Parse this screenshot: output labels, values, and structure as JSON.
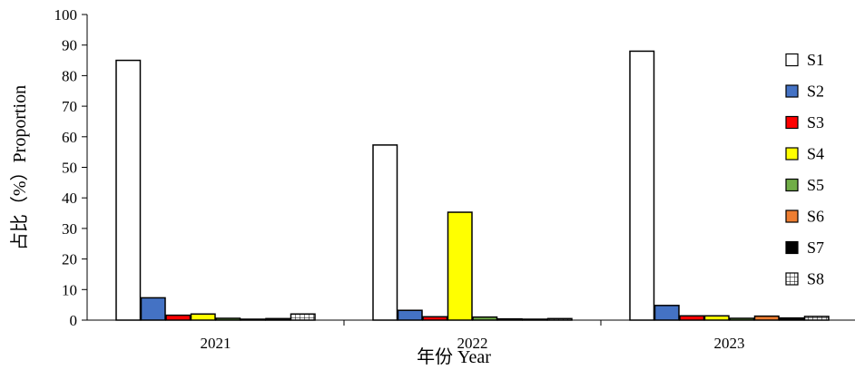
{
  "chart_data": {
    "type": "bar",
    "categories": [
      "2021",
      "2022",
      "2023"
    ],
    "xlabel": "年份 Year",
    "ylabel": "占比（%）Proportion",
    "ylim": [
      0,
      100
    ],
    "yticks": [
      0,
      10,
      20,
      30,
      40,
      50,
      60,
      70,
      80,
      90,
      100
    ],
    "legend_position": "right",
    "grid": false,
    "series": [
      {
        "name": "S1",
        "values": [
          85,
          57.3,
          88
        ],
        "color": "#ffffff",
        "pattern": "none"
      },
      {
        "name": "S2",
        "values": [
          7.3,
          3.2,
          4.8
        ],
        "color": "#4472c4",
        "pattern": "none"
      },
      {
        "name": "S3",
        "values": [
          1.6,
          1.1,
          1.4
        ],
        "color": "#ff0000",
        "pattern": "none"
      },
      {
        "name": "S4",
        "values": [
          2.0,
          35.3,
          1.4
        ],
        "color": "#ffff00",
        "pattern": "none"
      },
      {
        "name": "S5",
        "values": [
          0.6,
          1.0,
          0.6
        ],
        "color": "#70ad47",
        "pattern": "none"
      },
      {
        "name": "S6",
        "values": [
          0.3,
          0.4,
          1.3
        ],
        "color": "#ed7d31",
        "pattern": "none"
      },
      {
        "name": "S7",
        "values": [
          0.5,
          0.3,
          0.7
        ],
        "color": "#000000",
        "pattern": "none"
      },
      {
        "name": "S8",
        "values": [
          2.0,
          0.5,
          1.2
        ],
        "color": "#ffffff",
        "pattern": "grid"
      }
    ]
  }
}
